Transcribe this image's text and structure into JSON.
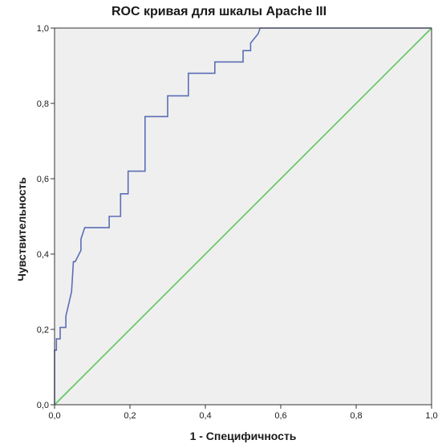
{
  "chart_data": {
    "type": "line",
    "title": "ROC кривая для шкалы Apache III",
    "xlabel": "1 - Специфичность",
    "ylabel": "Чувствительность",
    "xlim": [
      0,
      1
    ],
    "ylim": [
      0,
      1
    ],
    "x_ticks": [
      "0,0",
      "0,2",
      "0,4",
      "0,6",
      "0,8",
      "1,0"
    ],
    "y_ticks": [
      "0,0",
      "0,2",
      "0,4",
      "0,6",
      "0,8",
      "1,0"
    ],
    "grid": false,
    "legend": "none",
    "series": [
      {
        "role": "roc-curve",
        "color": "#5b6eb5",
        "x": [
          0.0,
          0.0,
          0.005,
          0.005,
          0.015,
          0.015,
          0.03,
          0.03,
          0.045,
          0.05,
          0.055,
          0.07,
          0.07,
          0.08,
          0.095,
          0.145,
          0.145,
          0.16,
          0.175,
          0.175,
          0.195,
          0.195,
          0.21,
          0.24,
          0.24,
          0.3,
          0.3,
          0.325,
          0.325,
          0.355,
          0.355,
          0.41,
          0.425,
          0.425,
          0.44,
          0.465,
          0.465,
          0.5,
          0.5,
          0.51,
          0.52,
          0.52,
          0.54,
          0.545,
          0.555,
          0.555,
          0.6,
          0.8,
          1.0
        ],
        "y": [
          0.0,
          0.145,
          0.145,
          0.175,
          0.175,
          0.205,
          0.205,
          0.235,
          0.3,
          0.38,
          0.38,
          0.41,
          0.44,
          0.47,
          0.47,
          0.47,
          0.5,
          0.5,
          0.5,
          0.56,
          0.56,
          0.62,
          0.62,
          0.62,
          0.765,
          0.765,
          0.82,
          0.82,
          0.82,
          0.82,
          0.88,
          0.88,
          0.88,
          0.91,
          0.91,
          0.91,
          0.91,
          0.91,
          0.94,
          0.94,
          0.94,
          0.96,
          0.985,
          1.0,
          1.0,
          1.0,
          1.0,
          1.0,
          1.0
        ]
      },
      {
        "role": "reference-line",
        "color": "#5cc65c",
        "x": [
          0,
          1
        ],
        "y": [
          0,
          1
        ]
      }
    ],
    "plot_background": "#efefef",
    "axis_color": "#333333"
  }
}
